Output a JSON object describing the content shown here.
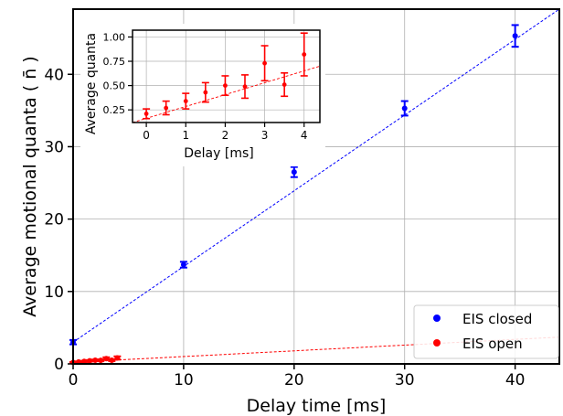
{
  "chart_data": [
    {
      "type": "scatter",
      "xlabel": "Delay time [ms]",
      "ylabel": "Average motional quanta ( n̄ )",
      "xlim": [
        0,
        44
      ],
      "ylim": [
        0,
        49
      ],
      "xticks": [
        0,
        10,
        20,
        30,
        40
      ],
      "yticks": [
        0,
        10,
        20,
        30,
        40
      ],
      "grid": true,
      "legend_position": "bottom-right",
      "series": [
        {
          "name": "EIS closed",
          "color": "#0000ff",
          "x": [
            0,
            10,
            20,
            30,
            40
          ],
          "y": [
            3.0,
            13.7,
            26.5,
            35.3,
            45.3
          ],
          "yerr": [
            0.3,
            0.4,
            0.7,
            1.0,
            1.5
          ],
          "fit": {
            "x": [
              0,
              44
            ],
            "y": [
              3.0,
              49.0
            ]
          }
        },
        {
          "name": "EIS open",
          "color": "#ff0000",
          "x": [
            0,
            0.5,
            1,
            1.5,
            2,
            2.5,
            3,
            3.5,
            4
          ],
          "y": [
            0.21,
            0.27,
            0.34,
            0.43,
            0.5,
            0.49,
            0.73,
            0.51,
            0.82
          ],
          "yerr": [
            0.05,
            0.07,
            0.08,
            0.1,
            0.1,
            0.12,
            0.18,
            0.12,
            0.22
          ],
          "fit": {
            "x": [
              0,
              44
            ],
            "y": [
              0.22,
              3.7
            ]
          }
        }
      ]
    },
    {
      "type": "scatter",
      "xlabel": "Delay [ms]",
      "ylabel": "Average quanta",
      "xlim": [
        -0.35,
        4.4
      ],
      "ylim": [
        0.12,
        1.07
      ],
      "xticks": [
        0,
        1,
        2,
        3,
        4
      ],
      "yticks": [
        0.25,
        0.5,
        0.75,
        1.0
      ],
      "ytick_labels": [
        "0.25",
        "0.50",
        "0.75",
        "1.00"
      ],
      "grid": true,
      "series": [
        {
          "color": "#ff0000",
          "x": [
            0,
            0.5,
            1,
            1.5,
            2,
            2.5,
            3,
            3.5,
            4
          ],
          "y": [
            0.21,
            0.27,
            0.34,
            0.43,
            0.5,
            0.49,
            0.73,
            0.51,
            0.82
          ],
          "yerr": [
            0.05,
            0.07,
            0.08,
            0.1,
            0.1,
            0.12,
            0.18,
            0.12,
            0.22
          ],
          "fit": {
            "x": [
              -0.35,
              4.4
            ],
            "y": [
              0.12,
              0.7
            ]
          }
        }
      ]
    }
  ]
}
